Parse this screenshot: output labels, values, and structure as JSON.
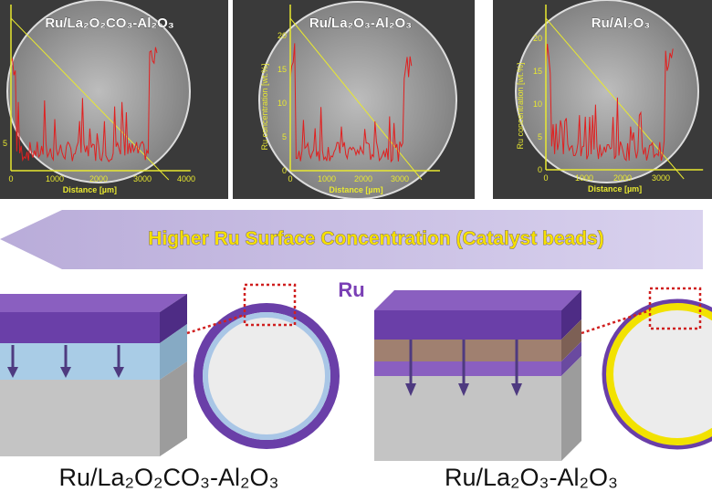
{
  "panels": [
    {
      "title": "Ru/La₂O₂CO₃-Al₂O₃",
      "x_label": "Distance [µm]",
      "x_ticks": [
        0,
        1000,
        2000,
        3000,
        4000
      ],
      "y_ticks": [
        5
      ]
    },
    {
      "title": "Ru/La₂O₃-Al₂O₃",
      "x_label": "Distance [µm]",
      "y_label": "Ru concentration [wt.%]",
      "x_ticks": [
        0,
        1000,
        2000,
        3000
      ],
      "y_ticks": [
        0,
        5,
        10,
        15,
        20
      ]
    },
    {
      "title": "Ru/Al₂O₃",
      "x_label": "Distance [µm]",
      "y_label": "Ru concentration [wt.%]",
      "x_ticks": [
        0,
        1000,
        2000,
        3000
      ],
      "y_ticks": [
        0,
        5,
        10,
        15,
        20
      ]
    }
  ],
  "arrow_text": "Higher Ru Surface Concentration (Catalyst beads)",
  "ru_label": "Ru",
  "diagrams": [
    {
      "label": "Ru/La₂O₂CO₃-Al₂O₃"
    },
    {
      "label": "Ru/La₂O₃-Al₂O₃"
    }
  ]
}
